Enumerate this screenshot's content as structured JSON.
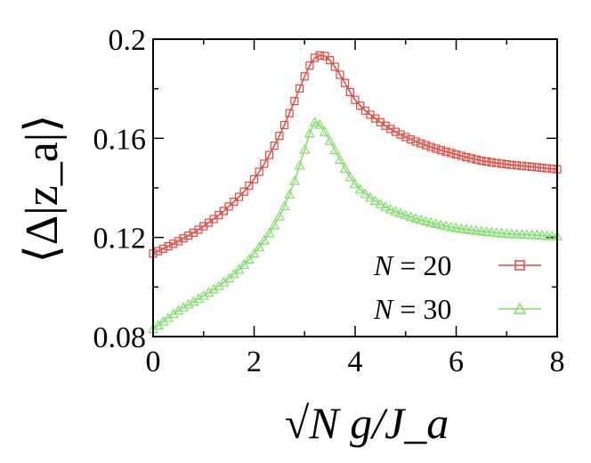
{
  "chart_data": {
    "type": "line",
    "title": "",
    "xlabel": "√N g/J_a",
    "ylabel": "⟨Δ|z_a|⟩",
    "xlim": [
      0,
      8
    ],
    "ylim": [
      0.08,
      0.2
    ],
    "x_ticks": [
      0,
      2,
      4,
      6,
      8
    ],
    "x_tick_labels": [
      "0",
      "2",
      "4",
      "6",
      "8"
    ],
    "y_ticks": [
      0.08,
      0.12,
      0.16,
      0.2
    ],
    "y_tick_labels": [
      "0.08",
      "0.12",
      "0.16",
      "0.2"
    ],
    "grid": false,
    "legend_position": "lower-right",
    "series": [
      {
        "name": "N = 20",
        "label_lhs": "N",
        "label_rhs": "= 20",
        "color": "#e8453c",
        "marker": "square",
        "x": [
          0,
          0.5,
          1.0,
          1.5,
          2.0,
          2.5,
          2.8,
          3.0,
          3.2,
          3.35,
          3.5,
          3.75,
          4.0,
          4.5,
          5.0,
          5.5,
          6.0,
          6.5,
          7.0,
          7.5,
          8.0
        ],
        "y": [
          0.1135,
          0.1185,
          0.1245,
          0.1325,
          0.1435,
          0.161,
          0.175,
          0.185,
          0.1925,
          0.1935,
          0.1915,
          0.184,
          0.1755,
          0.1665,
          0.1605,
          0.1565,
          0.1535,
          0.151,
          0.1495,
          0.1485,
          0.1475
        ]
      },
      {
        "name": "N = 30",
        "label_lhs": "N",
        "label_rhs": "= 30",
        "color": "#7fe06a",
        "marker": "triangle",
        "x": [
          0,
          0.5,
          1.0,
          1.5,
          2.0,
          2.5,
          2.75,
          3.0,
          3.1,
          3.2,
          3.3,
          3.5,
          3.75,
          4.0,
          4.5,
          5.0,
          5.5,
          6.0,
          6.5,
          7.0,
          7.5,
          8.0
        ],
        "y": [
          0.083,
          0.0905,
          0.0965,
          0.1035,
          0.1135,
          0.1285,
          0.14,
          0.1555,
          0.162,
          0.1665,
          0.1655,
          0.159,
          0.1495,
          0.1415,
          0.1335,
          0.129,
          0.126,
          0.1238,
          0.1225,
          0.1215,
          0.121,
          0.1205
        ]
      }
    ]
  }
}
